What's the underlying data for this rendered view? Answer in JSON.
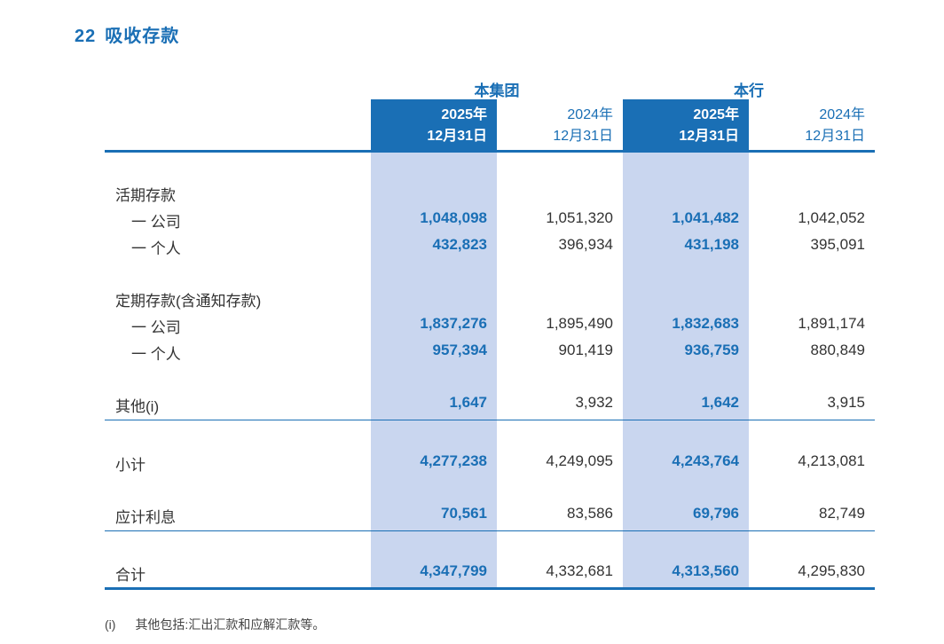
{
  "section": {
    "number": "22",
    "title": "吸收存款"
  },
  "groups": {
    "group_label": "本集团",
    "bank_label": "本行"
  },
  "columns": [
    {
      "year": "2025年",
      "date": "12月31日"
    },
    {
      "year": "2024年",
      "date": "12月31日"
    },
    {
      "year": "2025年",
      "date": "12月31日"
    },
    {
      "year": "2024年",
      "date": "12月31日"
    }
  ],
  "rows": {
    "demand_header": "活期存款",
    "demand_corporate": {
      "label": "一 公司",
      "values": [
        "1,048,098",
        "1,051,320",
        "1,041,482",
        "1,042,052"
      ]
    },
    "demand_personal": {
      "label": "一 个人",
      "values": [
        "432,823",
        "396,934",
        "431,198",
        "395,091"
      ]
    },
    "time_header": "定期存款(含通知存款)",
    "time_corporate": {
      "label": "一 公司",
      "values": [
        "1,837,276",
        "1,895,490",
        "1,832,683",
        "1,891,174"
      ]
    },
    "time_personal": {
      "label": "一 个人",
      "values": [
        "957,394",
        "901,419",
        "936,759",
        "880,849"
      ]
    },
    "other": {
      "label": "其他(i)",
      "values": [
        "1,647",
        "3,932",
        "1,642",
        "3,915"
      ]
    },
    "subtotal": {
      "label": "小计",
      "values": [
        "4,277,238",
        "4,249,095",
        "4,243,764",
        "4,213,081"
      ]
    },
    "interest": {
      "label": "应计利息",
      "values": [
        "70,561",
        "83,586",
        "69,796",
        "82,749"
      ]
    },
    "total": {
      "label": "合计",
      "values": [
        "4,347,799",
        "4,332,681",
        "4,313,560",
        "4,295,830"
      ]
    }
  },
  "footnote": {
    "mark": "(i)",
    "text": "其他包括:汇出汇款和应解汇款等。"
  }
}
